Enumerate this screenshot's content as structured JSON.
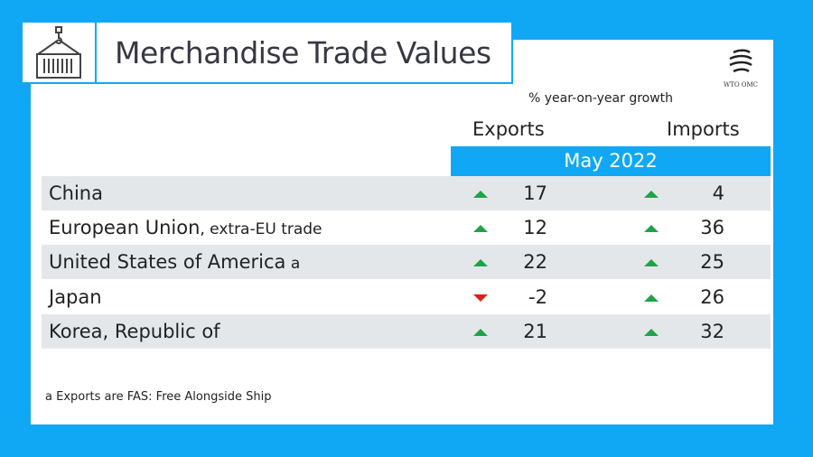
{
  "header": {
    "title": "Merchandise Trade Values",
    "icon": "cargo-container-crane-icon",
    "logo_text": "WTO OMC"
  },
  "chart_data": {
    "type": "table",
    "subtitle": "% year-on-year growth",
    "columns": [
      "Exports",
      "Imports"
    ],
    "period": "May 2022",
    "rows": [
      {
        "country": "China",
        "suffix": "",
        "exports": 17,
        "imports": 4
      },
      {
        "country": "European Union",
        "suffix": ", extra-EU trade",
        "exports": 12,
        "imports": 36
      },
      {
        "country": "United States of America",
        "suffix": " a",
        "exports": 22,
        "imports": 25
      },
      {
        "country": "Japan",
        "suffix": "",
        "exports": -2,
        "imports": 26
      },
      {
        "country": "Korea, Republic of",
        "suffix": "",
        "exports": 21,
        "imports": 32
      }
    ],
    "colors": {
      "up": "#1fa34a",
      "down": "#e0201c",
      "accent": "#10a8f4",
      "row_shade": "#e4e7e9"
    },
    "footnote": "a  Exports are FAS: Free Alongside Ship"
  }
}
